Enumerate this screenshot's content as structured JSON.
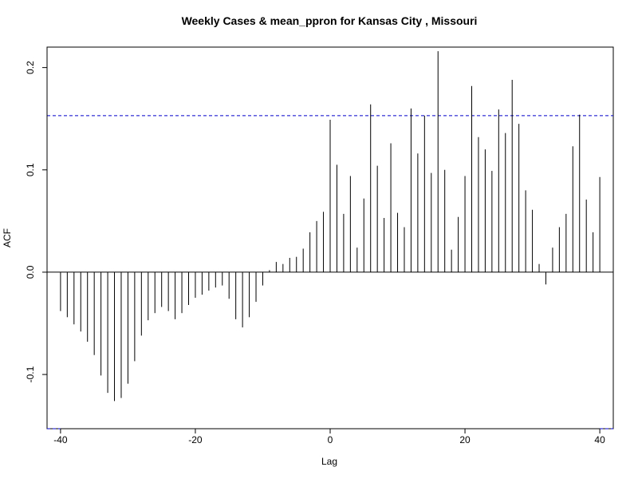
{
  "chart_data": {
    "type": "bar",
    "title": "Weekly Cases & mean_ppron for Kansas City , Missouri",
    "xlabel": "Lag",
    "ylabel": "ACF",
    "xlim": [
      -42,
      42
    ],
    "ylim": [
      -0.153,
      0.22
    ],
    "x_ticks": [
      -40,
      -20,
      0,
      20,
      40
    ],
    "x_tick_labels": [
      "-40",
      "-20",
      "0",
      "20",
      "40"
    ],
    "y_ticks": [
      -0.1,
      0.0,
      0.1,
      0.2
    ],
    "y_tick_labels": [
      "-0.1",
      "0.0",
      "0.1",
      "0.2"
    ],
    "confidence_bounds": [
      0.153,
      -0.153
    ],
    "zero_line": 0,
    "colors": {
      "bars": "#000000",
      "confidence": "#0000cc",
      "axis": "#000000"
    },
    "x": [
      -40,
      -39,
      -38,
      -37,
      -36,
      -35,
      -34,
      -33,
      -32,
      -31,
      -30,
      -29,
      -28,
      -27,
      -26,
      -25,
      -24,
      -23,
      -22,
      -21,
      -20,
      -19,
      -18,
      -17,
      -16,
      -15,
      -14,
      -13,
      -12,
      -11,
      -10,
      -9,
      -8,
      -7,
      -6,
      -5,
      -4,
      -3,
      -2,
      -1,
      0,
      1,
      2,
      3,
      4,
      5,
      6,
      7,
      8,
      9,
      10,
      11,
      12,
      13,
      14,
      15,
      16,
      17,
      18,
      19,
      20,
      21,
      22,
      23,
      24,
      25,
      26,
      27,
      28,
      29,
      30,
      31,
      32,
      33,
      34,
      35,
      36,
      37,
      38,
      39,
      40
    ],
    "values": [
      -0.038,
      -0.044,
      -0.051,
      -0.058,
      -0.068,
      -0.081,
      -0.101,
      -0.118,
      -0.126,
      -0.123,
      -0.109,
      -0.087,
      -0.062,
      -0.047,
      -0.04,
      -0.034,
      -0.038,
      -0.046,
      -0.04,
      -0.032,
      -0.025,
      -0.022,
      -0.018,
      -0.015,
      -0.013,
      -0.026,
      -0.046,
      -0.054,
      -0.044,
      -0.029,
      -0.013,
      0.002,
      0.01,
      0.008,
      0.014,
      0.015,
      0.023,
      0.039,
      0.05,
      0.059,
      0.149,
      0.105,
      0.057,
      0.094,
      0.024,
      0.072,
      0.164,
      0.104,
      0.053,
      0.126,
      0.058,
      0.044,
      0.16,
      0.116,
      0.153,
      0.097,
      0.216,
      0.1,
      0.022,
      0.054,
      0.094,
      0.182,
      0.132,
      0.12,
      0.099,
      0.159,
      0.136,
      0.188,
      0.145,
      0.08,
      0.061,
      0.008,
      -0.012,
      0.024,
      0.044,
      0.057,
      0.123,
      0.154,
      0.071,
      0.039,
      0.093
    ]
  }
}
